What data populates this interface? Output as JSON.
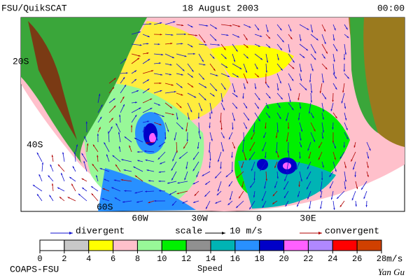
{
  "header": {
    "source": "FSU/QuikSCAT",
    "date": "18 August 2003",
    "time": "00:00"
  },
  "latitude_labels": [
    "20S",
    "40S",
    "60S"
  ],
  "longitude_labels": [
    "60W",
    "30W",
    "0",
    "30E"
  ],
  "legend": {
    "divergent": "divergent",
    "scale": "scale",
    "scale_value": "10 m/s",
    "convergent": "convergent",
    "divergent_color": "#1010d0",
    "convergent_color": "#b00000"
  },
  "colorbar": {
    "ticks": [
      0,
      2,
      4,
      6,
      8,
      10,
      12,
      14,
      16,
      18,
      20,
      22,
      24,
      26,
      28
    ],
    "colors": [
      "#ffffff",
      "#c8c8c8",
      "#ffff00",
      "#ffc0cb",
      "#98f898",
      "#00f000",
      "#909090",
      "#00b4b4",
      "#2890ff",
      "#0000c8",
      "#ff60ff",
      "#b088ff",
      "#ff0000",
      "#d04000",
      "#000000"
    ],
    "unit": "m/s",
    "title": "Speed"
  },
  "footer": {
    "left": "COAPS-FSU",
    "author": "Yan Gu"
  }
}
